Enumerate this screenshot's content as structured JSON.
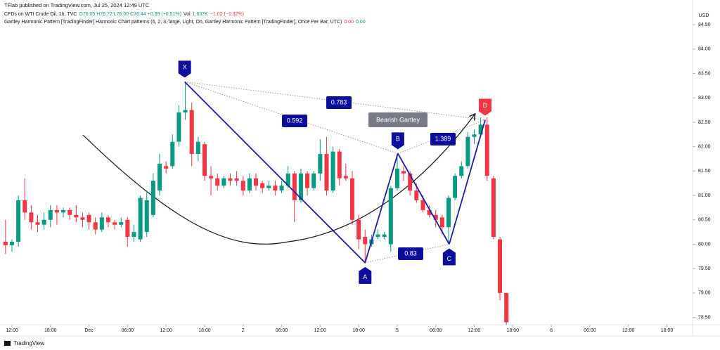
{
  "header": {
    "publisher": "TFlab published on TradingView.com, Jul 25, 2024 12:49 UTC",
    "symbol": "CFDs on WTI Crude Oil, 1h, TVC",
    "ohlc": "O76.05 H76.72 L76.00 C76.44 +0.39 (+0.51%)",
    "volume_label": "Vol",
    "volume": "1.637K",
    "volume_change": "−1.02 (−1.32%)",
    "indicator": "Gartley Harmonic Pattern [TradingFinder] Harmonic Chart patterns (6, 2, 3, large, Light, On, Gartley Harmonic Pattern [TradingFinder], Once Per Bar, UTC)",
    "indicator_v1": "0.00",
    "indicator_v2": "0.00",
    "currency": "USD"
  },
  "chart_data": {
    "type": "candlestick",
    "up_color": "#089981",
    "down_color": "#f23645",
    "xlim": [
      -1.86,
      106
    ],
    "ylim": [
      78.35,
      84.79
    ],
    "xticks": [
      {
        "value": 0,
        "label": "12:00"
      },
      {
        "value": 6,
        "label": "18:00"
      },
      {
        "value": 12,
        "label": "Dec"
      },
      {
        "value": 18,
        "label": "06:00"
      },
      {
        "value": 24,
        "label": "12:00"
      },
      {
        "value": 30,
        "label": "18:00"
      },
      {
        "value": 36,
        "label": "2"
      },
      {
        "value": 42,
        "label": "06:00"
      },
      {
        "value": 48,
        "label": "12:00"
      },
      {
        "value": 54,
        "label": "18:00"
      },
      {
        "value": 60,
        "label": "5"
      },
      {
        "value": 66,
        "label": "06:00"
      },
      {
        "value": 72,
        "label": "12:00"
      },
      {
        "value": 78,
        "label": "18:00"
      },
      {
        "value": 84,
        "label": "6"
      },
      {
        "value": 90,
        "label": "06:00"
      },
      {
        "value": 96,
        "label": "12:00"
      },
      {
        "value": 102,
        "label": "18:00"
      }
    ],
    "yticks": [
      {
        "value": 78.5,
        "label": "78.50"
      },
      {
        "value": 79,
        "label": "79.00"
      },
      {
        "value": 79.5,
        "label": "79.50"
      },
      {
        "value": 80,
        "label": "80.00"
      },
      {
        "value": 80.5,
        "label": "80.50"
      },
      {
        "value": 81,
        "label": "81.00"
      },
      {
        "value": 81.5,
        "label": "81.50"
      },
      {
        "value": 82,
        "label": "82.00"
      },
      {
        "value": 82.5,
        "label": "82.50"
      },
      {
        "value": 83,
        "label": "83.00"
      },
      {
        "value": 83.5,
        "label": "83.50"
      },
      {
        "value": 84,
        "label": "84.00"
      },
      {
        "value": 84.5,
        "label": "84.50"
      }
    ],
    "candles": [
      {
        "x": -1,
        "open": 80.05,
        "high": 80.5,
        "low": 79.8,
        "close": 79.98
      },
      {
        "x": 0,
        "open": 79.98,
        "high": 80.1,
        "low": 79.85,
        "close": 80.05
      },
      {
        "x": 1,
        "open": 80.05,
        "high": 81.0,
        "low": 79.95,
        "close": 80.9
      },
      {
        "x": 2,
        "open": 80.9,
        "high": 81.35,
        "low": 80.5,
        "close": 80.65
      },
      {
        "x": 3,
        "open": 80.65,
        "high": 80.8,
        "low": 80.3,
        "close": 80.45
      },
      {
        "x": 4,
        "open": 80.45,
        "high": 80.6,
        "low": 80.25,
        "close": 80.4
      },
      {
        "x": 5,
        "open": 80.4,
        "high": 80.65,
        "low": 80.3,
        "close": 80.5
      },
      {
        "x": 6,
        "open": 80.5,
        "high": 80.8,
        "low": 80.35,
        "close": 80.7
      },
      {
        "x": 7,
        "open": 80.7,
        "high": 80.8,
        "low": 80.4,
        "close": 80.65
      },
      {
        "x": 8,
        "open": 80.65,
        "high": 80.75,
        "low": 80.55,
        "close": 80.7
      },
      {
        "x": 9,
        "open": 80.7,
        "high": 80.75,
        "low": 80.5,
        "close": 80.6
      },
      {
        "x": 10,
        "open": 80.6,
        "high": 80.8,
        "low": 80.45,
        "close": 80.55
      },
      {
        "x": 11,
        "open": 80.55,
        "high": 80.65,
        "low": 80.35,
        "close": 80.5
      },
      {
        "x": 12,
        "open": 80.6,
        "high": 80.65,
        "low": 80.3,
        "close": 80.45
      },
      {
        "x": 13,
        "open": 80.45,
        "high": 80.55,
        "low": 80.2,
        "close": 80.3
      },
      {
        "x": 14,
        "open": 80.3,
        "high": 80.65,
        "low": 80.25,
        "close": 80.55
      },
      {
        "x": 15,
        "open": 80.55,
        "high": 80.6,
        "low": 80.35,
        "close": 80.45
      },
      {
        "x": 16,
        "open": 80.45,
        "high": 80.5,
        "low": 80.3,
        "close": 80.4
      },
      {
        "x": 17,
        "open": 80.4,
        "high": 80.55,
        "low": 80.35,
        "close": 80.45
      },
      {
        "x": 18,
        "open": 80.5,
        "high": 80.55,
        "low": 79.95,
        "close": 80.15
      },
      {
        "x": 19,
        "open": 80.15,
        "high": 80.4,
        "low": 80.05,
        "close": 80.25
      },
      {
        "x": 20,
        "open": 80.1,
        "high": 81.0,
        "low": 80.05,
        "close": 80.95
      },
      {
        "x": 21,
        "open": 80.25,
        "high": 81.1,
        "low": 80.15,
        "close": 80.9
      },
      {
        "x": 22,
        "open": 80.6,
        "high": 81.45,
        "low": 80.55,
        "close": 81.3
      },
      {
        "x": 23,
        "open": 81.1,
        "high": 81.85,
        "low": 81.0,
        "close": 81.65
      },
      {
        "x": 24,
        "open": 81.6,
        "high": 81.7,
        "low": 81.45,
        "close": 81.55
      },
      {
        "x": 25,
        "open": 81.6,
        "high": 82.25,
        "low": 81.55,
        "close": 82.1
      },
      {
        "x": 26,
        "open": 82.1,
        "high": 82.85,
        "low": 82.0,
        "close": 82.7
      },
      {
        "x": 27,
        "open": 82.7,
        "high": 83.3,
        "low": 82.55,
        "close": 82.75
      },
      {
        "x": 28,
        "open": 82.75,
        "high": 82.9,
        "low": 81.6,
        "close": 81.85
      },
      {
        "x": 29,
        "open": 81.85,
        "high": 82.2,
        "low": 81.7,
        "close": 82.1
      },
      {
        "x": 30,
        "open": 82.05,
        "high": 82.1,
        "low": 81.3,
        "close": 81.4
      },
      {
        "x": 31,
        "open": 81.4,
        "high": 81.6,
        "low": 81.0,
        "close": 81.35
      },
      {
        "x": 32,
        "open": 81.35,
        "high": 81.45,
        "low": 81.1,
        "close": 81.2
      },
      {
        "x": 33,
        "open": 81.2,
        "high": 81.4,
        "low": 81.15,
        "close": 81.35
      },
      {
        "x": 34,
        "open": 81.35,
        "high": 81.45,
        "low": 81.2,
        "close": 81.3
      },
      {
        "x": 35,
        "open": 81.35,
        "high": 81.5,
        "low": 81.2,
        "close": 81.3
      },
      {
        "x": 36,
        "open": 81.3,
        "high": 81.4,
        "low": 81.0,
        "close": 81.1
      },
      {
        "x": 37,
        "open": 81.1,
        "high": 81.45,
        "low": 81.05,
        "close": 81.35
      },
      {
        "x": 38,
        "open": 81.35,
        "high": 81.45,
        "low": 81.1,
        "close": 81.2
      },
      {
        "x": 39,
        "open": 81.25,
        "high": 81.3,
        "low": 81.05,
        "close": 81.15
      },
      {
        "x": 40,
        "open": 81.15,
        "high": 81.3,
        "low": 81.1,
        "close": 81.2
      },
      {
        "x": 41,
        "open": 81.2,
        "high": 81.3,
        "low": 81.0,
        "close": 81.1
      },
      {
        "x": 42,
        "open": 81.1,
        "high": 81.3,
        "low": 81.05,
        "close": 81.2
      },
      {
        "x": 43,
        "open": 81.2,
        "high": 81.6,
        "low": 81.15,
        "close": 81.45
      },
      {
        "x": 44,
        "open": 81.45,
        "high": 81.5,
        "low": 80.45,
        "close": 80.9
      },
      {
        "x": 45,
        "open": 80.9,
        "high": 81.55,
        "low": 80.85,
        "close": 81.45
      },
      {
        "x": 46,
        "open": 81.45,
        "high": 81.5,
        "low": 81.0,
        "close": 81.15
      },
      {
        "x": 47,
        "open": 81.15,
        "high": 81.5,
        "low": 81.1,
        "close": 81.45
      },
      {
        "x": 48,
        "open": 81.45,
        "high": 82.15,
        "low": 81.3,
        "close": 81.85
      },
      {
        "x": 49,
        "open": 81.85,
        "high": 82.2,
        "low": 81.0,
        "close": 81.1
      },
      {
        "x": 50,
        "open": 81.1,
        "high": 82.0,
        "low": 81.05,
        "close": 81.9
      },
      {
        "x": 51,
        "open": 81.9,
        "high": 81.95,
        "low": 81.2,
        "close": 81.35
      },
      {
        "x": 52,
        "open": 81.4,
        "high": 81.65,
        "low": 81.3,
        "close": 81.35
      },
      {
        "x": 53,
        "open": 81.35,
        "high": 81.5,
        "low": 80.4,
        "close": 80.5
      },
      {
        "x": 54,
        "open": 80.5,
        "high": 80.6,
        "low": 79.9,
        "close": 80.1
      },
      {
        "x": 55,
        "open": 80.15,
        "high": 80.3,
        "low": 79.6,
        "close": 80.0
      },
      {
        "x": 56,
        "open": 80.0,
        "high": 80.2,
        "low": 79.95,
        "close": 80.1
      },
      {
        "x": 57,
        "open": 80.15,
        "high": 80.3,
        "low": 80.1,
        "close": 80.2
      },
      {
        "x": 58,
        "open": 80.15,
        "high": 80.25,
        "low": 80.1,
        "close": 80.2
      },
      {
        "x": 59,
        "open": 80.0,
        "high": 81.2,
        "low": 79.85,
        "close": 81.15
      },
      {
        "x": 60,
        "open": 81.15,
        "high": 81.85,
        "low": 81.1,
        "close": 81.55
      },
      {
        "x": 61,
        "open": 81.5,
        "high": 81.6,
        "low": 81.3,
        "close": 81.45
      },
      {
        "x": 62,
        "open": 81.45,
        "high": 81.5,
        "low": 81.0,
        "close": 81.1
      },
      {
        "x": 63,
        "open": 81.1,
        "high": 81.25,
        "low": 80.85,
        "close": 80.9
      },
      {
        "x": 64,
        "open": 80.9,
        "high": 81.0,
        "low": 80.65,
        "close": 80.7
      },
      {
        "x": 65,
        "open": 80.7,
        "high": 80.8,
        "low": 80.55,
        "close": 80.6
      },
      {
        "x": 66,
        "open": 80.6,
        "high": 80.7,
        "low": 80.35,
        "close": 80.5
      },
      {
        "x": 67,
        "open": 80.55,
        "high": 80.6,
        "low": 80.2,
        "close": 80.35
      },
      {
        "x": 68,
        "open": 80.35,
        "high": 81.0,
        "low": 80.0,
        "close": 80.95
      },
      {
        "x": 69,
        "open": 80.95,
        "high": 81.45,
        "low": 80.9,
        "close": 81.4
      },
      {
        "x": 70,
        "open": 81.4,
        "high": 81.7,
        "low": 81.35,
        "close": 81.6
      },
      {
        "x": 71,
        "open": 81.6,
        "high": 82.3,
        "low": 81.55,
        "close": 82.2
      },
      {
        "x": 72,
        "open": 82.2,
        "high": 82.35,
        "low": 82.05,
        "close": 82.25
      },
      {
        "x": 73,
        "open": 82.25,
        "high": 82.6,
        "low": 82.2,
        "close": 82.45
      },
      {
        "x": 74,
        "open": 82.45,
        "high": 82.6,
        "low": 81.3,
        "close": 81.4
      },
      {
        "x": 75,
        "open": 81.35,
        "high": 81.4,
        "low": 80.1,
        "close": 80.15
      },
      {
        "x": 76,
        "open": 80.1,
        "high": 80.15,
        "low": 78.85,
        "close": 79.0
      },
      {
        "x": 77,
        "open": 79.0,
        "high": 79.0,
        "low": 78.35,
        "close": 78.4
      }
    ],
    "pattern": {
      "name": "Bearish Gartley",
      "line_color": "#1f1fa0",
      "point_color": "#0d0d9e",
      "end_color": "#f23645",
      "points": [
        {
          "label": "X",
          "x": 26.9,
          "y": 83.33
        },
        {
          "label": "A",
          "x": 55,
          "y": 79.62
        },
        {
          "label": "B",
          "x": 60.1,
          "y": 81.86
        },
        {
          "label": "C",
          "x": 68.1,
          "y": 80.0
        },
        {
          "label": "D",
          "x": 73.7,
          "y": 82.55
        }
      ],
      "ratios": [
        0.592,
        0.783,
        1.389,
        0.83
      ]
    }
  },
  "footer": {
    "brand": "TradingView"
  }
}
